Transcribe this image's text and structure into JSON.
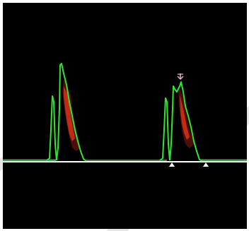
{
  "viewer": {
    "type": "doppler-spectral-waveform",
    "background_color": "#000000",
    "trace_color": "#2ee62e",
    "baseline_color": "#ffffff",
    "baseline_tint_color": "#7fd67f",
    "fill_color_dark": "#8a1a10",
    "fill_color_bright": "#e0331a",
    "marker_color": "#ffffff",
    "cursor_color": "#e8b8b8",
    "beats": 2,
    "markers": [
      {
        "name": "start-marker-beat-2",
        "shape": "triangle-up"
      },
      {
        "name": "end-marker-beat-2",
        "shape": "triangle-up"
      }
    ],
    "peak_cursor": {
      "name": "peak-velocity-cursor",
      "shape": "arrow-down"
    }
  }
}
